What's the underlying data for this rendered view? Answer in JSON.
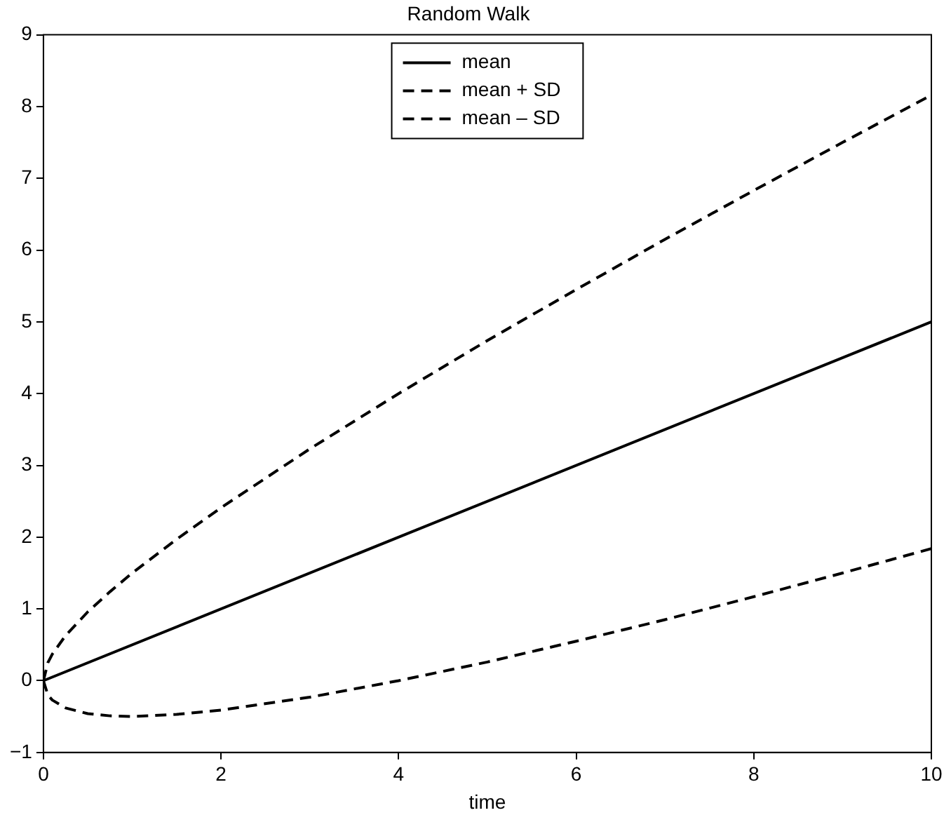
{
  "chart_data": {
    "type": "line",
    "title": "Random Walk",
    "xlabel": "time",
    "xlim": [
      0,
      10
    ],
    "xticks": [
      0,
      2,
      4,
      6,
      8,
      10
    ],
    "ylim": [
      -1,
      9
    ],
    "yticks": [
      -1,
      0,
      1,
      2,
      3,
      4,
      5,
      6,
      7,
      8,
      9
    ],
    "grid": false,
    "legend": "top",
    "marker": "none",
    "series": [
      {
        "name": "mean",
        "color": "#000000",
        "line_style": "solid",
        "x": [
          0,
          10
        ],
        "values": [
          0,
          5
        ]
      },
      {
        "name": "mean + SD",
        "color": "#000000",
        "line_style": "dashed",
        "x": [
          0,
          0.05,
          0.1,
          0.25,
          0.5,
          0.75,
          1,
          1.5,
          2,
          3,
          4,
          5,
          6,
          7,
          8,
          9,
          10
        ],
        "values": [
          0,
          0.25,
          0.37,
          0.63,
          0.96,
          1.24,
          1.5,
          1.97,
          2.41,
          3.23,
          4.0,
          4.74,
          5.45,
          6.15,
          6.83,
          7.5,
          8.16
        ]
      },
      {
        "name": "mean – SD",
        "color": "#000000",
        "line_style": "dashed",
        "x": [
          0,
          0.05,
          0.1,
          0.25,
          0.5,
          0.75,
          1,
          1.5,
          2,
          3,
          4,
          5,
          6,
          7,
          8,
          9,
          10
        ],
        "values": [
          0,
          -0.2,
          -0.27,
          -0.38,
          -0.46,
          -0.49,
          -0.5,
          -0.47,
          -0.41,
          -0.23,
          0,
          0.26,
          0.55,
          0.85,
          1.17,
          1.5,
          1.84
        ]
      }
    ]
  }
}
